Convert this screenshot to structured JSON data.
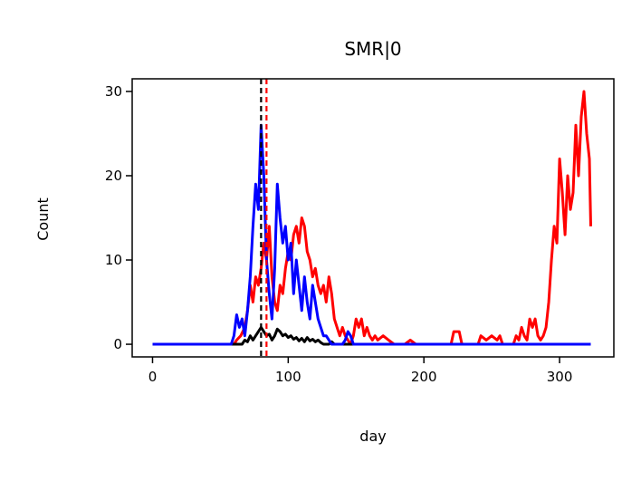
{
  "chart_data": {
    "type": "line",
    "title": "SMR|0",
    "xlabel": "day",
    "ylabel": "Count",
    "xlim": [
      -15,
      340
    ],
    "ylim": [
      -1.5,
      31.5
    ],
    "xticks": [
      0,
      100,
      200,
      300
    ],
    "yticks": [
      0,
      10,
      20,
      30
    ],
    "grid": false,
    "legend": "none",
    "series": [
      {
        "color": "#ff0000",
        "points": [
          [
            0,
            0
          ],
          [
            60,
            0
          ],
          [
            62,
            0.5
          ],
          [
            65,
            1
          ],
          [
            68,
            2
          ],
          [
            70,
            4
          ],
          [
            72,
            7
          ],
          [
            74,
            5
          ],
          [
            76,
            8
          ],
          [
            78,
            7
          ],
          [
            80,
            9
          ],
          [
            82,
            12
          ],
          [
            84,
            10
          ],
          [
            86,
            14
          ],
          [
            88,
            8
          ],
          [
            90,
            5
          ],
          [
            92,
            4
          ],
          [
            94,
            7
          ],
          [
            96,
            6
          ],
          [
            98,
            9
          ],
          [
            100,
            11
          ],
          [
            102,
            10
          ],
          [
            104,
            13
          ],
          [
            106,
            14
          ],
          [
            108,
            12
          ],
          [
            110,
            15
          ],
          [
            112,
            14
          ],
          [
            114,
            11
          ],
          [
            116,
            10
          ],
          [
            118,
            8
          ],
          [
            120,
            9
          ],
          [
            122,
            7
          ],
          [
            124,
            6
          ],
          [
            126,
            7
          ],
          [
            128,
            5
          ],
          [
            130,
            8
          ],
          [
            132,
            6
          ],
          [
            134,
            3
          ],
          [
            136,
            2
          ],
          [
            138,
            1
          ],
          [
            140,
            2
          ],
          [
            142,
            1
          ],
          [
            144,
            0.5
          ],
          [
            146,
            0
          ],
          [
            148,
            1
          ],
          [
            150,
            3
          ],
          [
            152,
            2
          ],
          [
            154,
            3
          ],
          [
            156,
            1
          ],
          [
            158,
            2
          ],
          [
            160,
            1
          ],
          [
            162,
            0.5
          ],
          [
            164,
            1
          ],
          [
            166,
            0.5
          ],
          [
            170,
            1
          ],
          [
            174,
            0.5
          ],
          [
            178,
            0
          ],
          [
            186,
            0
          ],
          [
            190,
            0.5
          ],
          [
            194,
            0
          ],
          [
            220,
            0
          ],
          [
            222,
            1.5
          ],
          [
            226,
            1.5
          ],
          [
            228,
            0
          ],
          [
            240,
            0
          ],
          [
            242,
            1
          ],
          [
            246,
            0.5
          ],
          [
            250,
            1
          ],
          [
            254,
            0.5
          ],
          [
            256,
            1
          ],
          [
            258,
            0
          ],
          [
            266,
            0
          ],
          [
            268,
            1
          ],
          [
            270,
            0.5
          ],
          [
            272,
            2
          ],
          [
            274,
            1
          ],
          [
            276,
            0.5
          ],
          [
            278,
            3
          ],
          [
            280,
            2
          ],
          [
            282,
            3
          ],
          [
            284,
            1
          ],
          [
            286,
            0.5
          ],
          [
            288,
            1
          ],
          [
            290,
            2
          ],
          [
            292,
            5
          ],
          [
            294,
            10
          ],
          [
            296,
            14
          ],
          [
            298,
            12
          ],
          [
            300,
            22
          ],
          [
            302,
            18
          ],
          [
            304,
            13
          ],
          [
            306,
            20
          ],
          [
            308,
            16
          ],
          [
            310,
            18
          ],
          [
            312,
            26
          ],
          [
            314,
            20
          ],
          [
            316,
            27
          ],
          [
            318,
            30
          ],
          [
            320,
            25
          ],
          [
            322,
            22
          ],
          [
            323,
            14
          ]
        ]
      },
      {
        "color": "#000000",
        "points": [
          [
            0,
            0
          ],
          [
            66,
            0
          ],
          [
            68,
            0.5
          ],
          [
            70,
            0.3
          ],
          [
            72,
            1
          ],
          [
            74,
            0.5
          ],
          [
            76,
            1
          ],
          [
            78,
            1.5
          ],
          [
            80,
            2
          ],
          [
            82,
            1.5
          ],
          [
            84,
            1
          ],
          [
            86,
            1.2
          ],
          [
            88,
            0.5
          ],
          [
            90,
            1
          ],
          [
            92,
            1.8
          ],
          [
            94,
            1.5
          ],
          [
            96,
            1
          ],
          [
            98,
            1.2
          ],
          [
            100,
            0.8
          ],
          [
            102,
            1
          ],
          [
            104,
            0.6
          ],
          [
            106,
            0.8
          ],
          [
            108,
            0.4
          ],
          [
            110,
            0.7
          ],
          [
            112,
            0.3
          ],
          [
            114,
            0.8
          ],
          [
            116,
            0.4
          ],
          [
            118,
            0.6
          ],
          [
            120,
            0.3
          ],
          [
            122,
            0.5
          ],
          [
            124,
            0.2
          ],
          [
            126,
            0
          ],
          [
            130,
            0
          ],
          [
            132,
            0.3
          ],
          [
            134,
            0
          ],
          [
            323,
            0
          ]
        ]
      },
      {
        "color": "#0000ff",
        "points": [
          [
            0,
            0
          ],
          [
            58,
            0
          ],
          [
            60,
            1
          ],
          [
            62,
            3.5
          ],
          [
            64,
            2
          ],
          [
            66,
            3
          ],
          [
            68,
            1
          ],
          [
            70,
            4
          ],
          [
            72,
            8
          ],
          [
            74,
            14
          ],
          [
            76,
            19
          ],
          [
            78,
            16
          ],
          [
            80,
            26
          ],
          [
            82,
            20
          ],
          [
            84,
            10
          ],
          [
            86,
            6
          ],
          [
            88,
            3
          ],
          [
            90,
            9
          ],
          [
            92,
            19
          ],
          [
            94,
            15
          ],
          [
            96,
            12
          ],
          [
            98,
            14
          ],
          [
            100,
            10
          ],
          [
            102,
            12
          ],
          [
            104,
            6
          ],
          [
            106,
            10
          ],
          [
            108,
            7
          ],
          [
            110,
            4
          ],
          [
            112,
            8
          ],
          [
            114,
            5
          ],
          [
            116,
            3
          ],
          [
            118,
            7
          ],
          [
            120,
            5
          ],
          [
            122,
            3
          ],
          [
            124,
            2
          ],
          [
            126,
            1
          ],
          [
            128,
            1
          ],
          [
            130,
            0.5
          ],
          [
            132,
            0
          ],
          [
            140,
            0
          ],
          [
            142,
            0.5
          ],
          [
            144,
            1.5
          ],
          [
            146,
            1
          ],
          [
            148,
            0
          ],
          [
            323,
            0
          ]
        ]
      }
    ],
    "vlines": [
      {
        "x": 80,
        "color": "#000000",
        "style": "dashed"
      },
      {
        "x": 84,
        "color": "#ff0000",
        "style": "dashed"
      }
    ]
  }
}
